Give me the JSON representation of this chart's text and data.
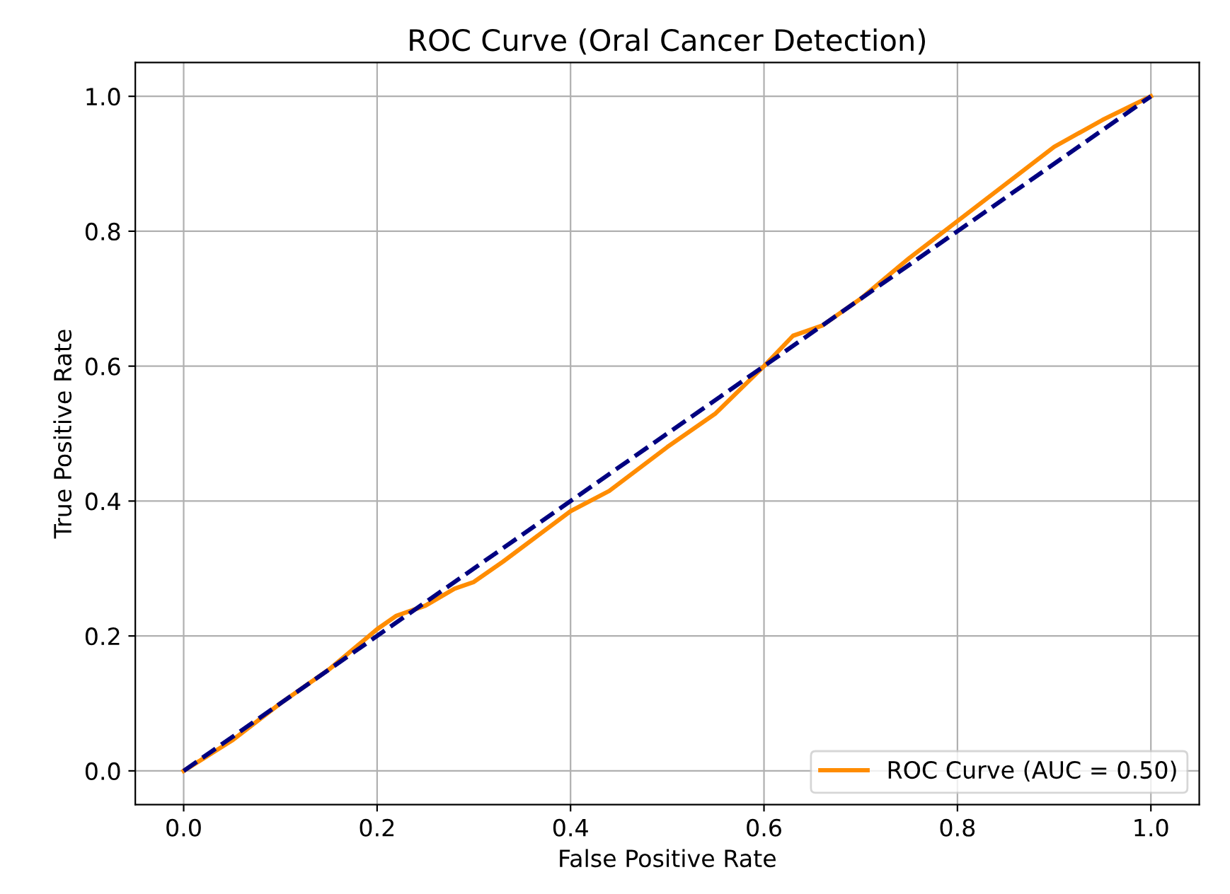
{
  "chart_data": {
    "type": "line",
    "title": "ROC Curve (Oral Cancer Detection)",
    "xlabel": "False Positive Rate",
    "ylabel": "True Positive Rate",
    "series": [
      {
        "name": "ROC Curve (AUC = 0.50)",
        "color": "#ff8c00",
        "line_style": "solid",
        "x": [
          0,
          0.05,
          0.1,
          0.15,
          0.2,
          0.22,
          0.25,
          0.28,
          0.3,
          0.33,
          0.4,
          0.44,
          0.5,
          0.55,
          0.6,
          0.63,
          0.66,
          0.7,
          0.75,
          0.8,
          0.85,
          0.9,
          0.95,
          1
        ],
        "values": [
          0,
          0.045,
          0.1,
          0.15,
          0.21,
          0.23,
          0.245,
          0.27,
          0.28,
          0.31,
          0.385,
          0.415,
          0.48,
          0.53,
          0.6,
          0.645,
          0.66,
          0.7,
          0.76,
          0.815,
          0.87,
          0.925,
          0.965,
          1
        ]
      },
      {
        "color": "#000080",
        "line_style": "dashed",
        "x": [
          0,
          1
        ],
        "values": [
          0,
          1
        ]
      }
    ],
    "xlim": [
      -0.05,
      1.05
    ],
    "ylim": [
      -0.05,
      1.05
    ],
    "xticks": [
      "0.0",
      0.2,
      0.4,
      0.6,
      0.8,
      "1.0"
    ],
    "yticks": [
      "0.0",
      0.2,
      0.4,
      0.6,
      0.8,
      "1.0"
    ],
    "grid": true,
    "legend": "lower right",
    "marker": "none"
  }
}
